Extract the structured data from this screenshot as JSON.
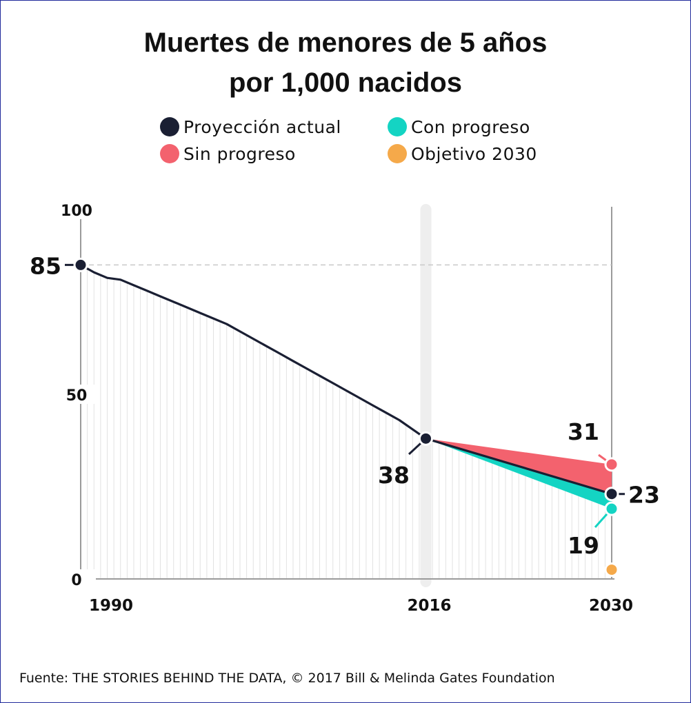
{
  "title_line1": "Muertes de menores de 5 años",
  "title_line2": "por 1,000 nacidos",
  "legend": [
    {
      "label": "Proyección actual",
      "color": "#1a1f33"
    },
    {
      "label": "Con progreso",
      "color": "#14d4c3"
    },
    {
      "label": "Sin progreso",
      "color": "#f3626e"
    },
    {
      "label": "Objetivo 2030",
      "color": "#f5a94a"
    }
  ],
  "footer": "Fuente: THE STORIES BEHIND THE DATA, © 2017 Bill & Melinda Gates Foundation",
  "chart_data": {
    "type": "line",
    "title": "Muertes de menores de 5 años por 1,000 nacidos",
    "x_ticks": [
      "1990",
      "2016",
      "2030"
    ],
    "y_ticks": [
      "0",
      "50",
      "100"
    ],
    "ylim": [
      0,
      100
    ],
    "xlim": [
      1990,
      2030
    ],
    "series": [
      {
        "name": "Proyección actual",
        "color": "#1a1f33",
        "x": [
          1990,
          1991,
          1992,
          1993,
          1994,
          1995,
          1996,
          1997,
          1998,
          1999,
          2000,
          2001,
          2002,
          2003,
          2004,
          2005,
          2006,
          2007,
          2008,
          2009,
          2010,
          2011,
          2012,
          2013,
          2014,
          2015,
          2016,
          2030
        ],
        "y": [
          85,
          83,
          81.5,
          81,
          79.5,
          78,
          76.5,
          75,
          73.5,
          72,
          70.5,
          69,
          67,
          65,
          63,
          61,
          59,
          57,
          55,
          53,
          51,
          49,
          47,
          45,
          43,
          40.5,
          38,
          23
        ]
      },
      {
        "name": "Sin progreso",
        "color": "#f3626e",
        "x": [
          2016,
          2030
        ],
        "y": [
          38,
          31
        ]
      },
      {
        "name": "Con progreso",
        "color": "#14d4c3",
        "x": [
          2016,
          2030
        ],
        "y": [
          38,
          19
        ]
      },
      {
        "name": "Objetivo 2030",
        "color": "#f5a94a",
        "x": [
          2030
        ],
        "y": [
          2.5
        ]
      }
    ],
    "annotations": [
      {
        "x": 1990,
        "y": 85,
        "label": "85"
      },
      {
        "x": 2016,
        "y": 38,
        "label": "38"
      },
      {
        "x": 2030,
        "y": 31,
        "label": "31"
      },
      {
        "x": 2030,
        "y": 23,
        "label": "23"
      },
      {
        "x": 2030,
        "y": 19,
        "label": "19"
      }
    ],
    "reference_line": {
      "y": 85,
      "style": "dashed"
    },
    "grid": false
  }
}
